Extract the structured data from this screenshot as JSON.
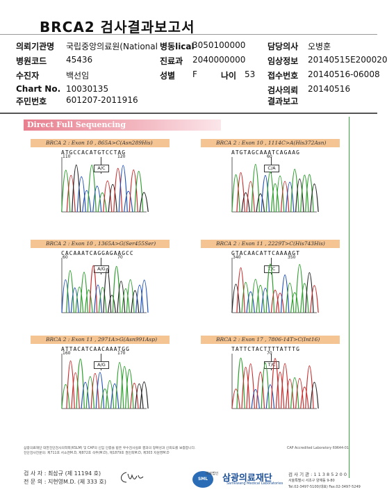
{
  "report": {
    "title": "BRCA2 검사결과보고서",
    "fields": {
      "institution_label": "의뢰기관명",
      "institution_value": "국립중앙의료원(National",
      "ward_label": "병동lical",
      "ward_value": "3050100000",
      "doctor_label": "담당의사",
      "doctor_value": "오병훈",
      "hospcode_label": "병원코드",
      "hospcode_value": "45436",
      "dept_label": "진료과",
      "dept_value": "2040000000",
      "clinical_label": "임상정보",
      "clinical_value": "20140515E200020",
      "patient_label": "수진자",
      "patient_value": "백선임",
      "sex_label": "성별",
      "sex_value": "F",
      "age_label": "나이",
      "age_value": "53",
      "receipt_label": "접수번호",
      "receipt_value": "20140516-06008",
      "chart_label": "Chart No.",
      "chart_value": "10030135",
      "request_label": "검사의뢰",
      "request_value": "20140516",
      "id_label": "주민번호",
      "id_value": "601207-2011916",
      "result_label": "결과보고"
    }
  },
  "section_title": "Direct Full Sequencing",
  "panels": [
    {
      "caption": "BRCA 2 : Exon 10 , 865A>C(Asn289His)",
      "seq": "ATGCCACATGTCCTAG",
      "left_num": "110",
      "right_num": "120",
      "mutation": "A/C"
    },
    {
      "caption": "BRCA 2 : Exon 10 , 1114C>A(His372Asn)",
      "seq": "ATGTAGCAAATCAGAAG",
      "left_num": "",
      "right_num": "60",
      "mutation": "C/A"
    },
    {
      "caption": "BRCA 2 : Exon 10 , 1365A>G(Ser455Ser)",
      "seq": "CACAAATCAGGAGAAGCC",
      "left_num": "60",
      "right_num": "70",
      "mutation": "A/G"
    },
    {
      "caption": "BRCA 2 : Exon 11 , 2229T>C(His743His)",
      "seq": "GTACAACATTCAAAAGT",
      "left_num": "340",
      "right_num": "350",
      "mutation": "T/C"
    },
    {
      "caption": "BRCA 2 : Exon 11 , 2971A>G(Asn991Asp)",
      "seq": "ATTACATCAACAAATGG",
      "left_num": "160",
      "right_num": "170",
      "mutation": "A/G"
    },
    {
      "caption": "BRCA 2 : Exon 17 , 7806-14T>C(Int16)",
      "seq": "TATTCTACTTTTATTTG",
      "left_num": "",
      "right_num": "70",
      "mutation": "T/C"
    }
  ],
  "footer": {
    "accreditation_line1": "삼광의료재단 대한진단검사의학회(KSLM) 및 CAP의 신임 인증을 받은 우수검사실로 결과의 정확성과 신뢰도를 보증합니다.",
    "accreditation_line2": "진단검사전문의: 제711호 서소연M.D, 제872호 석주(M.D), 제1879호 권민희M.D, 제303 지원영M.D",
    "cap_number": "CAP Accredited Laboratory 69644-01",
    "tester": "검 사 자 : 최삼규 (제 11194 호)",
    "specialist": "전 문 의 : 지현영M.D. (제 333 호)",
    "org_name": "삼광의료재단",
    "org_badge": "의료법인",
    "org_sub": "Samkwang Medical Laboratories",
    "inst_code": "검 사 기 관 : 1 1 3 8 5 2 0 0",
    "address": "서울특별시 서초구 양재동 9-80",
    "phone": "Tel.02-3497-5100(대표) Fax.02-3497-5249"
  }
}
